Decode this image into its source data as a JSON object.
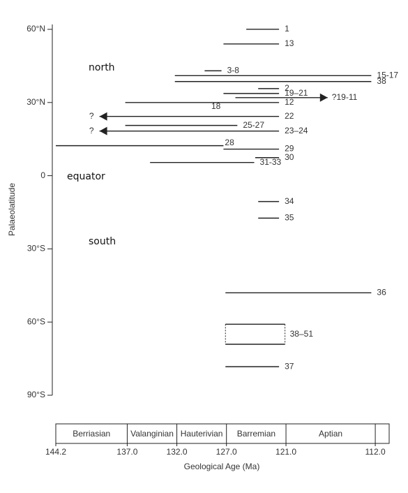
{
  "chart_data": {
    "type": "range",
    "x_label": "Geological Age (Ma)",
    "y_label": "Palaeolatitude",
    "xlim": [
      144.2,
      110.6
    ],
    "ylim": [
      -90,
      62
    ],
    "xticks": [
      {
        "value": 144.2,
        "label": "144.2"
      },
      {
        "value": 137.0,
        "label": "137.0"
      },
      {
        "value": 132.0,
        "label": "132.0"
      },
      {
        "value": 127.0,
        "label": "127.0"
      },
      {
        "value": 121.0,
        "label": "121.0"
      },
      {
        "value": 112.0,
        "label": "112.0"
      }
    ],
    "yticks": [
      {
        "value": 60,
        "label": "60°N"
      },
      {
        "value": 30,
        "label": "30°N"
      },
      {
        "value": 0,
        "label": "0"
      },
      {
        "value": -30,
        "label": "30°S"
      },
      {
        "value": -60,
        "label": "60°S"
      },
      {
        "value": -90,
        "label": "90°S"
      }
    ],
    "stages": [
      {
        "name": "Berriasian",
        "from": 144.2,
        "to": 137.0
      },
      {
        "name": "Valanginian",
        "from": 137.0,
        "to": 132.0
      },
      {
        "name": "Hauterivian",
        "from": 132.0,
        "to": 127.0
      },
      {
        "name": "Barremian",
        "from": 127.0,
        "to": 121.0
      },
      {
        "name": "Aptian",
        "from": 121.0,
        "to": 112.0
      }
    ],
    "color": "#222222",
    "ranges": [
      {
        "name": "1",
        "lat": 60,
        "from": 125.0,
        "to": 121.7
      },
      {
        "name": "13",
        "lat": 54,
        "from": 127.3,
        "to": 121.7
      },
      {
        "name": "3-8",
        "lat": 43,
        "from": 129.2,
        "to": 127.5
      },
      {
        "name": "15-17",
        "lat": 41,
        "from": 132.2,
        "to": 112.4
      },
      {
        "name": "38",
        "lat": 38.6,
        "from": 132.2,
        "to": 112.4
      },
      {
        "name": "2",
        "lat": 35.7,
        "from": 123.8,
        "to": 121.7
      },
      {
        "name": "19–21",
        "lat": 33.7,
        "from": 127.3,
        "to": 121.7
      },
      {
        "name": "?19-11",
        "lat": 32,
        "from": 126.1,
        "to": 116.8,
        "arrow": "right"
      },
      {
        "name": "12",
        "lat": 30,
        "from": 137.2,
        "to": 121.7
      },
      {
        "name": "22",
        "lat": 24.3,
        "from": 139.8,
        "to": 121.7,
        "arrow": "left",
        "start_label": "?"
      },
      {
        "name": "25-27",
        "lat": 20.6,
        "from": 137.2,
        "to": 125.9
      },
      {
        "name": "23–24",
        "lat": 18.3,
        "from": 139.8,
        "to": 121.7,
        "arrow": "left",
        "start_label": "?"
      },
      {
        "name": "28",
        "lat": 12.3,
        "from": 144.2,
        "to": 127.3,
        "label_position": "above"
      },
      {
        "name": "29",
        "lat": 10.9,
        "from": 127.3,
        "to": 121.7
      },
      {
        "name": "30",
        "lat": 7.4,
        "from": 124.1,
        "to": 121.7
      },
      {
        "name": "31-33",
        "lat": 5.4,
        "from": 134.7,
        "to": 124.2
      },
      {
        "name": "34",
        "lat": -10.6,
        "from": 123.8,
        "to": 121.7
      },
      {
        "name": "35",
        "lat": -17.4,
        "from": 123.8,
        "to": 121.7
      },
      {
        "name": "36",
        "lat": -48,
        "from": 127.1,
        "to": 112.4
      },
      {
        "name": "37",
        "lat": -78.3,
        "from": 127.1,
        "to": 121.7
      }
    ],
    "box": {
      "name": "38–51",
      "lat_top": -60.9,
      "lat_bottom": -69.1,
      "from": 127.1,
      "to": 121.1
    },
    "annotations": [
      "north",
      "equator",
      "south",
      "18"
    ]
  }
}
